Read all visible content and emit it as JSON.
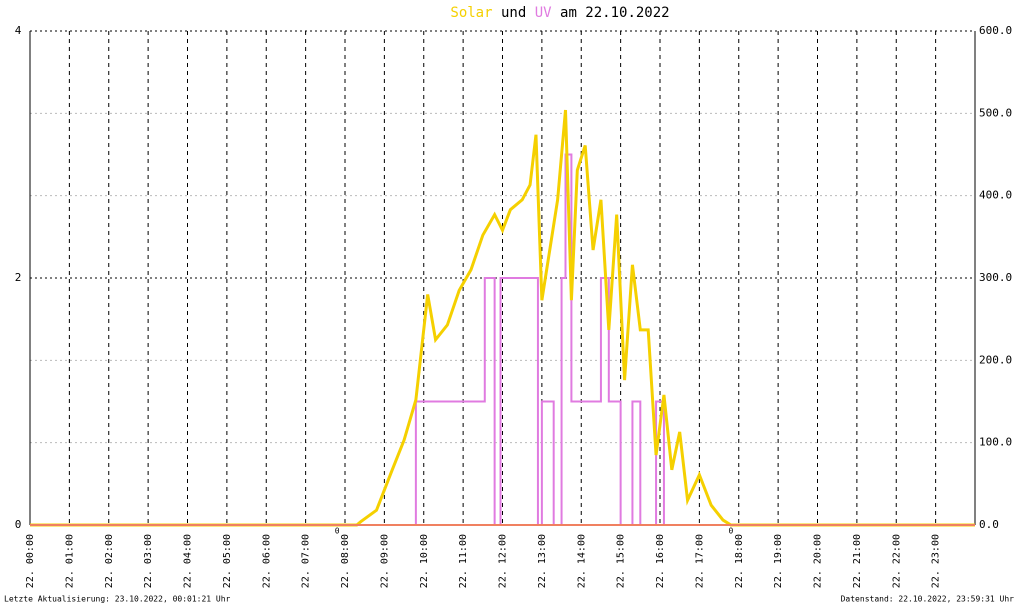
{
  "chart_data": {
    "type": "line",
    "title_connector": "und",
    "title_date": "am 22.10.2022",
    "footer_left": "Letzte Aktualisierung: 23.10.2022, 00:01:21 Uhr",
    "footer_right": "Datenstand: 22.10.2022, 23:59:31 Uhr",
    "xlim": [
      0,
      24
    ],
    "xticks": [
      {
        "value": 0,
        "label": "22. 00:00"
      },
      {
        "value": 1,
        "label": "22. 01:00"
      },
      {
        "value": 2,
        "label": "22. 02:00"
      },
      {
        "value": 3,
        "label": "22. 03:00"
      },
      {
        "value": 4,
        "label": "22. 04:00"
      },
      {
        "value": 5,
        "label": "22. 05:00"
      },
      {
        "value": 6,
        "label": "22. 06:00"
      },
      {
        "value": 7,
        "label": "22. 07:00"
      },
      {
        "value": 8,
        "label": "22. 08:00"
      },
      {
        "value": 9,
        "label": "22. 09:00"
      },
      {
        "value": 10,
        "label": "22. 10:00"
      },
      {
        "value": 11,
        "label": "22. 11:00"
      },
      {
        "value": 12,
        "label": "22. 12:00"
      },
      {
        "value": 13,
        "label": "22. 13:00"
      },
      {
        "value": 14,
        "label": "22. 14:00"
      },
      {
        "value": 15,
        "label": "22. 15:00"
      },
      {
        "value": 16,
        "label": "22. 16:00"
      },
      {
        "value": 17,
        "label": "22. 17:00"
      },
      {
        "value": 18,
        "label": "22. 18:00"
      },
      {
        "value": 19,
        "label": "22. 19:00"
      },
      {
        "value": 20,
        "label": "22. 20:00"
      },
      {
        "value": 21,
        "label": "22. 21:00"
      },
      {
        "value": 22,
        "label": "22. 22:00"
      },
      {
        "value": 23,
        "label": "22. 23:00"
      }
    ],
    "ylim": [
      0,
      4
    ],
    "yticks": [
      0,
      2,
      4
    ],
    "y2lim": [
      0,
      600
    ],
    "y2ticks": [
      {
        "value": 0,
        "label": "0.0"
      },
      {
        "value": 100,
        "label": "100.0"
      },
      {
        "value": 200,
        "label": "200.0"
      },
      {
        "value": 300,
        "label": "300.0"
      },
      {
        "value": 400,
        "label": "400.0"
      },
      {
        "value": 500,
        "label": "500.0"
      },
      {
        "value": 600,
        "label": "600.0"
      }
    ],
    "annotations": [
      {
        "x": 7.8,
        "label": "0"
      },
      {
        "x": 17.8,
        "label": "0"
      }
    ],
    "series": [
      {
        "name": "Solar",
        "color": "#f5d000",
        "axis": "y2",
        "x": [
          0,
          8.3,
          8.4,
          8.8,
          9.2,
          9.5,
          9.8,
          10.1,
          10.3,
          10.6,
          10.9,
          11.2,
          11.5,
          11.8,
          12.0,
          12.2,
          12.5,
          12.7,
          12.85,
          13.0,
          13.2,
          13.4,
          13.6,
          13.75,
          13.9,
          14.1,
          14.3,
          14.5,
          14.7,
          14.9,
          15.1,
          15.3,
          15.5,
          15.7,
          15.9,
          16.1,
          16.3,
          16.5,
          16.7,
          17.0,
          17.3,
          17.6,
          17.8,
          24
        ],
        "values": [
          0,
          0,
          4,
          18,
          67,
          103,
          152,
          280,
          225,
          243,
          285,
          310,
          352,
          377,
          358,
          383,
          395,
          413,
          474,
          273,
          334,
          395,
          504,
          273,
          431,
          461,
          334,
          395,
          237,
          377,
          176,
          316,
          237,
          237,
          85,
          158,
          67,
          113,
          30,
          61,
          24,
          6,
          0,
          0
        ]
      },
      {
        "name": "UV",
        "color": "#e07be0",
        "axis": "y",
        "x": [
          0,
          9.8,
          9.8,
          11.55,
          11.55,
          11.8,
          11.8,
          11.95,
          11.95,
          12.9,
          12.9,
          13.0,
          13.0,
          13.3,
          13.3,
          13.5,
          13.5,
          13.6,
          13.6,
          13.75,
          13.75,
          14.5,
          14.5,
          14.7,
          14.7,
          15.0,
          15.0,
          15.3,
          15.3,
          15.5,
          15.5,
          15.9,
          15.9,
          16.1,
          16.1,
          24
        ],
        "values": [
          0,
          0,
          1,
          1,
          2,
          2,
          0,
          0,
          2,
          2,
          0,
          0,
          1,
          1,
          0,
          0,
          2,
          2,
          3,
          3,
          1,
          1,
          2,
          2,
          1,
          1,
          0,
          0,
          1,
          1,
          0,
          0,
          1,
          1,
          0,
          0
        ]
      }
    ]
  }
}
